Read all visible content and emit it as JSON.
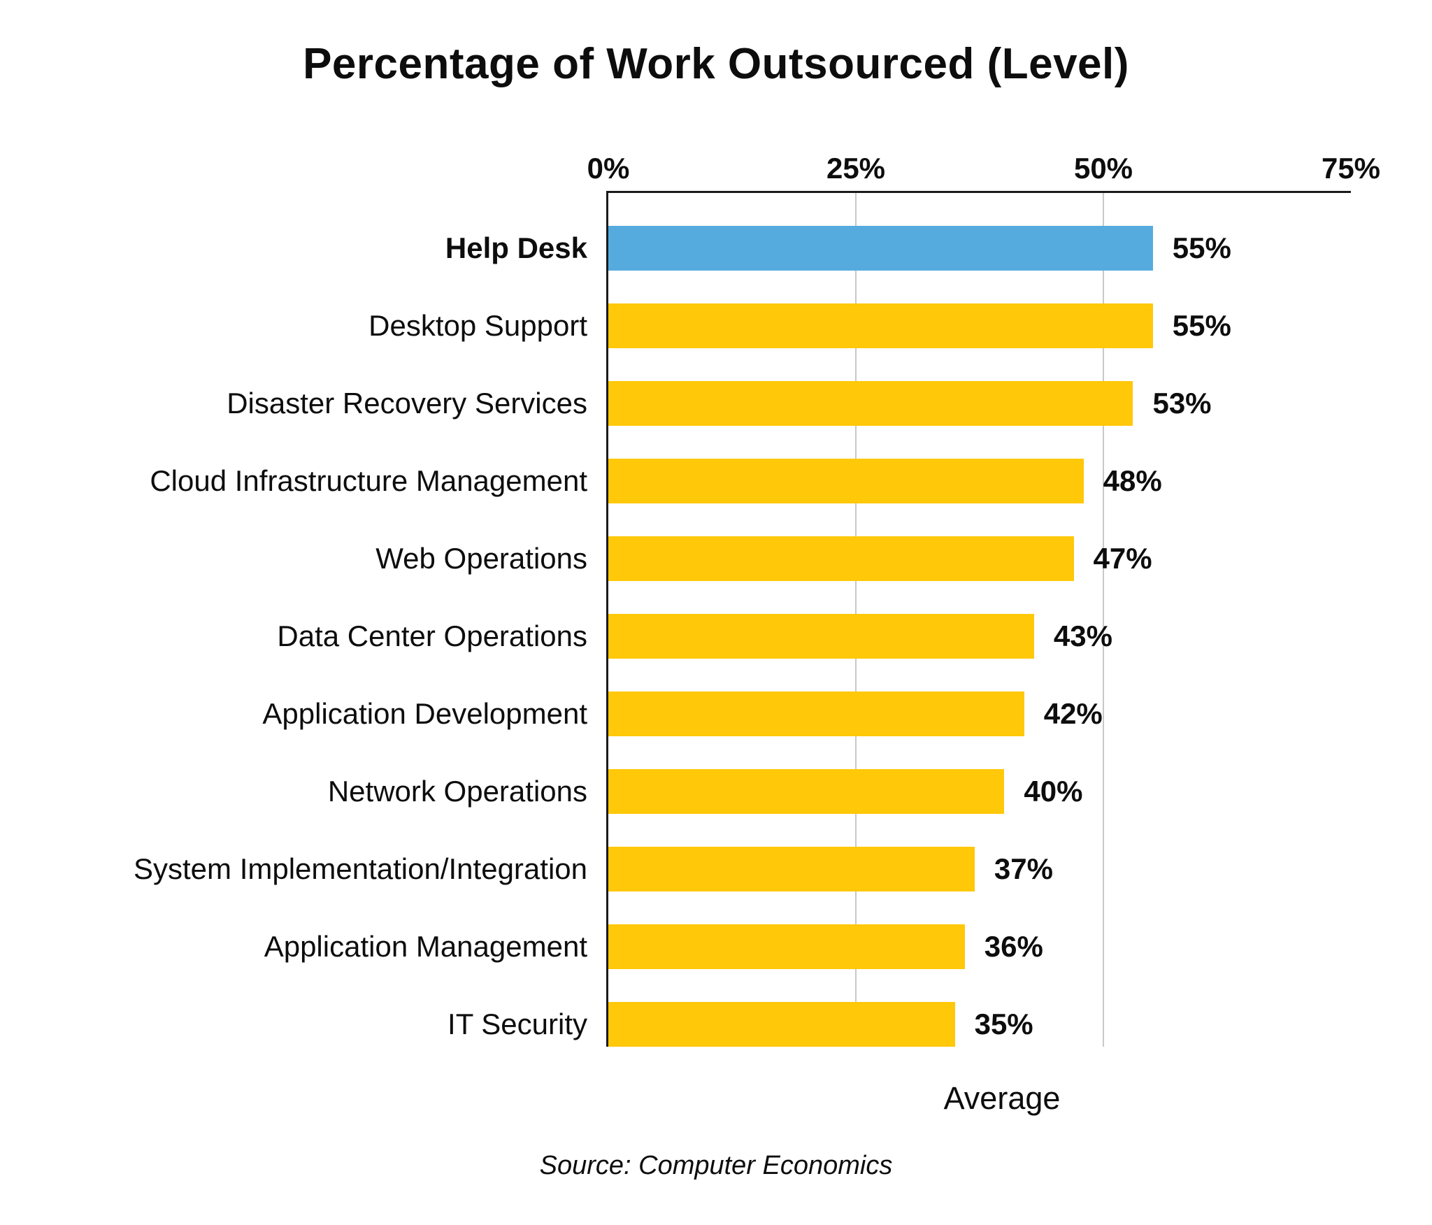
{
  "chart_data": {
    "type": "bar",
    "orientation": "horizontal",
    "title": "Percentage of Work Outsourced (Level)",
    "xlabel": "Average",
    "source": "Source: Computer Economics",
    "axis": {
      "position": "top",
      "ticks": [
        0,
        25,
        50,
        75
      ],
      "tick_labels": [
        "0%",
        "25%",
        "50%",
        "75%"
      ],
      "max": 75,
      "grid": "vertical gridlines at 25% and 50%"
    },
    "categories": [
      "Help Desk",
      "Desktop Support",
      "Disaster Recovery Services",
      "Cloud Infrastructure Management",
      "Web Operations",
      "Data Center Operations",
      "Application Development",
      "Network Operations",
      "System Implementation/Integration",
      "Application Management",
      "IT Security"
    ],
    "values": [
      55,
      55,
      53,
      48,
      47,
      43,
      42,
      40,
      37,
      36,
      35
    ],
    "value_labels": [
      "55%",
      "55%",
      "53%",
      "48%",
      "47%",
      "43%",
      "42%",
      "40%",
      "37%",
      "36%",
      "35%"
    ],
    "highlight_index": 0,
    "colors": {
      "bar": "#FFC808",
      "highlight_bar": "#55ABDE",
      "gridline": "#C8C8C8",
      "axis_line": "#1A1A1A",
      "text": "#0D0D0D",
      "background": "#FFFFFF"
    }
  }
}
